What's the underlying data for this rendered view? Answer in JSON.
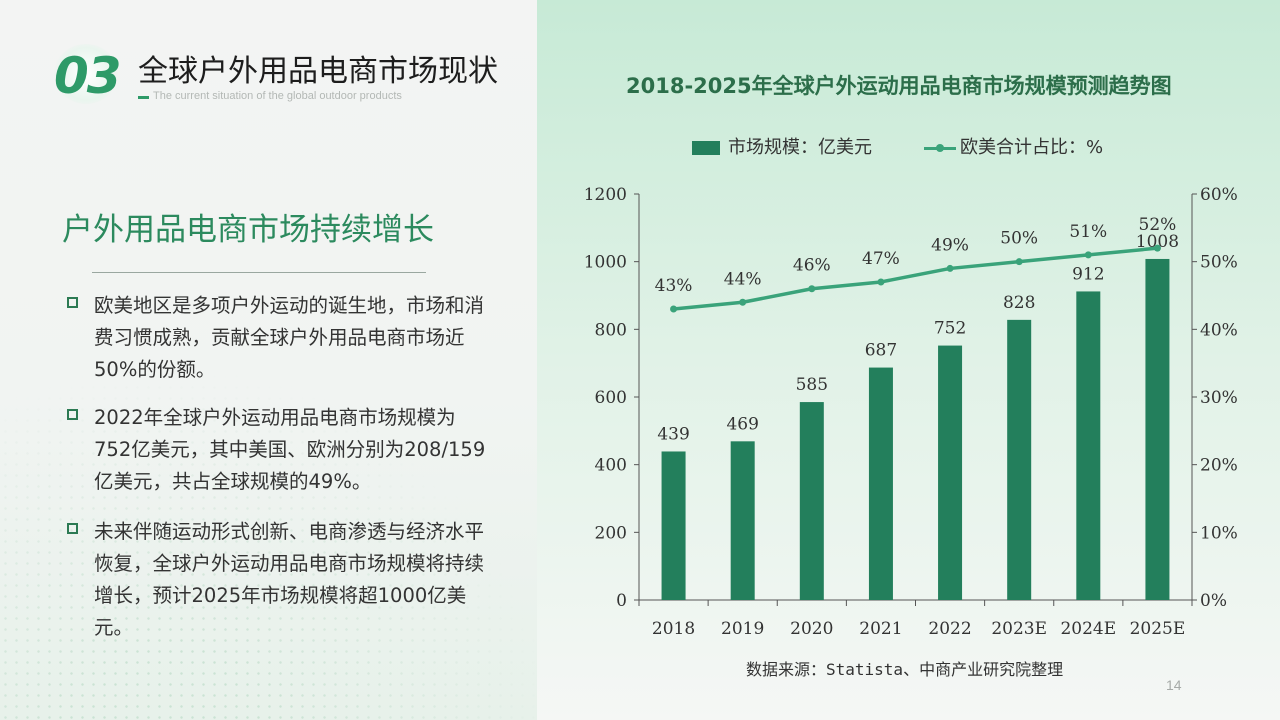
{
  "header": {
    "section_number": "03",
    "section_title": "全球户外用品电商市场现状",
    "section_subtitle": "The current situation of the global outdoor products"
  },
  "content": {
    "heading": "户外用品电商市场持续增长",
    "bullets": [
      "欧美地区是多项户外运动的诞生地，市场和消费习惯成熟，贡献全球户外用品电商市场近50%的份额。",
      "2022年全球户外运动用品电商市场规模为752亿美元，其中美国、欧洲分别为208/159亿美元，共占全球规模的49%。",
      "未来伴随运动形式创新、电商渗透与经济水平恢复，全球户外运动用品电商市场规模将持续增长，预计2025年市场规模将超1000亿美元。"
    ]
  },
  "chart_data": {
    "type": "bar",
    "title": "2018-2025年全球户外运动用品电商市场规模预测趋势图",
    "categories": [
      "2018",
      "2019",
      "2020",
      "2021",
      "2022",
      "2023E",
      "2024E",
      "2025E"
    ],
    "series": [
      {
        "name": "市场规模：亿美元",
        "type": "bar",
        "axis": "left",
        "values": [
          439,
          469,
          585,
          687,
          752,
          828,
          912,
          1008
        ],
        "color": "#237f5c"
      },
      {
        "name": "欧美合计占比：%",
        "type": "line",
        "axis": "right",
        "values": [
          43,
          44,
          46,
          47,
          49,
          50,
          51,
          52
        ],
        "color": "#3aa37a"
      }
    ],
    "left_axis": {
      "ylim": [
        0,
        1200
      ],
      "ticks": [
        "0",
        "200",
        "400",
        "600",
        "800",
        "1000",
        "1200"
      ]
    },
    "right_axis": {
      "ylim": [
        0,
        60
      ],
      "ticks": [
        "0%",
        "10%",
        "20%",
        "30%",
        "40%",
        "50%",
        "60%"
      ]
    },
    "line_labels": [
      "43%",
      "44%",
      "46%",
      "47%",
      "49%",
      "50%",
      "51%",
      "52%"
    ],
    "legend_position": "top-center",
    "grid": false
  },
  "source_note": "数据来源：Statista、中商产业研究院整理",
  "page_number": "14",
  "colors": {
    "accent": "#2e9a68",
    "bar": "#237f5c",
    "line": "#3aa37a",
    "heading": "#2c8a5e"
  }
}
